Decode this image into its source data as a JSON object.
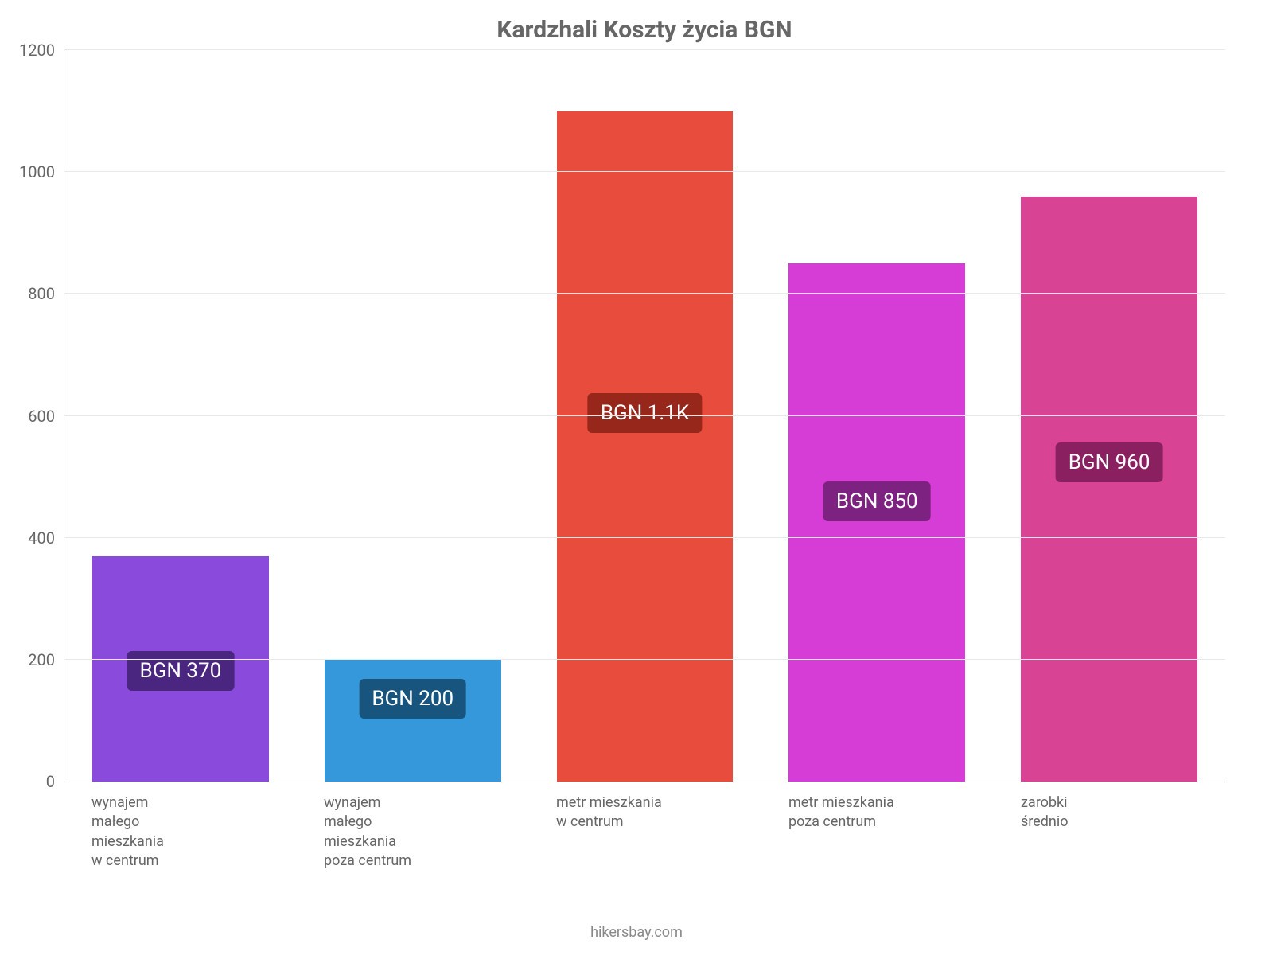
{
  "chart": {
    "type": "bar",
    "title": "Kardzhali Koszty życia BGN",
    "title_fontsize": 30,
    "title_color": "#666666",
    "background_color": "#ffffff",
    "grid_color": "#e9e9e9",
    "axis_color": "#bdbdbd",
    "tick_color": "#666666",
    "tick_fontsize": 20,
    "xlabel_color": "#666666",
    "xlabel_fontsize": 18,
    "ylim": [
      0,
      1200
    ],
    "ytick_step": 200,
    "yticks": [
      0,
      200,
      400,
      600,
      800,
      1000,
      1200
    ],
    "bar_width": 0.76,
    "bars": [
      {
        "category": "wynajem małego mieszkania w centrum",
        "label_lines": [
          "wynajem",
          "małego",
          "mieszkania",
          "w centrum"
        ],
        "value": 370,
        "value_label": "BGN 370",
        "bar_color": "#8a4bdc",
        "badge_color": "#4a2680"
      },
      {
        "category": "wynajem małego mieszkania poza centrum",
        "label_lines": [
          "wynajem",
          "małego",
          "mieszkania",
          "poza centrum"
        ],
        "value": 200,
        "value_label": "BGN 200",
        "bar_color": "#3498db",
        "badge_color": "#17557f"
      },
      {
        "category": "metr mieszkania w centrum",
        "label_lines": [
          "metr mieszkania",
          "w centrum"
        ],
        "value": 1100,
        "value_label": "BGN 1.1K",
        "bar_color": "#e74c3c",
        "badge_color": "#96271a"
      },
      {
        "category": "metr mieszkania poza centrum",
        "label_lines": [
          "metr mieszkania",
          "poza centrum"
        ],
        "value": 850,
        "value_label": "BGN 850",
        "bar_color": "#d63dd6",
        "badge_color": "#7d2280"
      },
      {
        "category": "zarobki średnio",
        "label_lines": [
          "zarobki",
          "średnio"
        ],
        "value": 960,
        "value_label": "BGN 960",
        "bar_color": "#d84393",
        "badge_color": "#8a2060"
      }
    ],
    "value_badge_fontsize": 26,
    "value_badge_text_color": "#ffffff",
    "attribution": "hikersbay.com",
    "attribution_color": "#888888",
    "attribution_fontsize": 18
  }
}
